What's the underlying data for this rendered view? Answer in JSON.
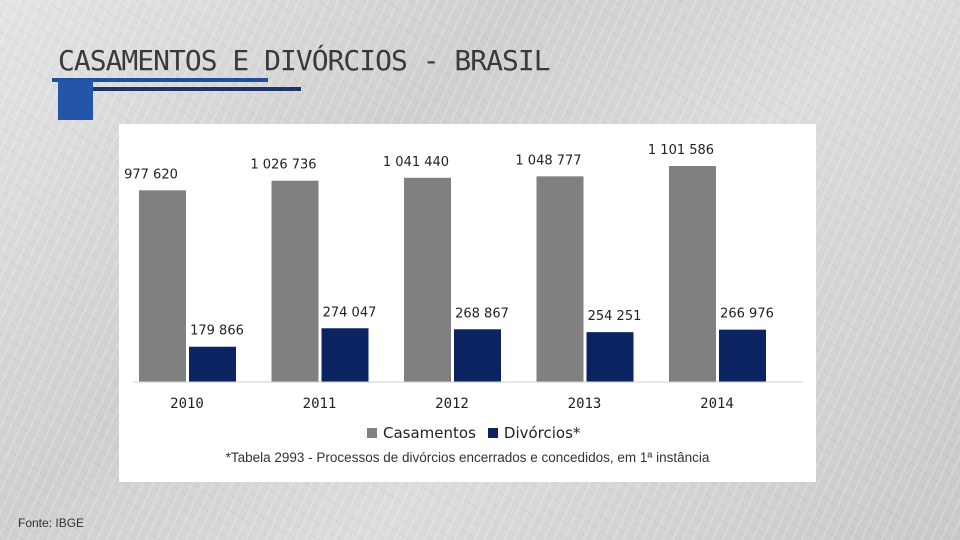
{
  "slide": {
    "title": "CASAMENTOS E DIVÓRCIOS - BRASIL",
    "footnote": "*Tabela 2993 - Processos de divórcios encerrados e concedidos, em 1ª instância",
    "source": "Fonte: IBGE"
  },
  "colors": {
    "casamentos": "#808080",
    "divorcios": "#0b2360",
    "accent_blue": "#2356a8",
    "accent_navy": "#1f3469"
  },
  "chart_data": {
    "type": "bar",
    "categories": [
      "2010",
      "2011",
      "2012",
      "2013",
      "2014"
    ],
    "series": [
      {
        "name": "Casamentos",
        "values": [
          977620,
          1026736,
          1041440,
          1048777,
          1101586
        ],
        "labels": [
          "977 620",
          "1 026 736",
          "1 041 440",
          "1 048 777",
          "1 101 586"
        ]
      },
      {
        "name": "Divórcios*",
        "values": [
          179866,
          274047,
          268867,
          254251,
          266976
        ],
        "labels": [
          "179 866",
          "274 047",
          "268 867",
          "254 251",
          "266 976"
        ]
      }
    ],
    "legend_position": "bottom",
    "grid": false
  }
}
